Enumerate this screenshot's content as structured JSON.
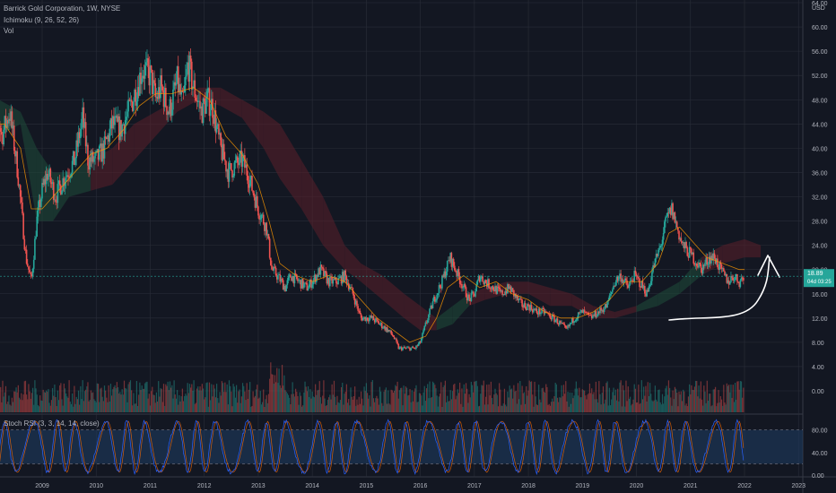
{
  "header": {
    "title": "Barrick Gold Corporation, 1W, NYSE",
    "ichimoku": "Ichimoku (9, 26, 52, 26)",
    "volume": "Vol",
    "currency": "USD"
  },
  "stoch": {
    "label": "Stoch RSI (3, 3, 14, 14, close)",
    "ticks": [
      "80.00",
      "40.00",
      "0.00"
    ]
  },
  "price_badge": {
    "price": "18.89",
    "countdown": "04d 03:25"
  },
  "colors": {
    "up": "#26a69a",
    "down": "#ef5350",
    "background": "#131722",
    "grid": "#2a2e39",
    "axis_text": "#b2b5be",
    "base_line": "#ff9800",
    "kumo_bull": "#1e4d3a",
    "kumo_bear": "#5a1f2a",
    "stoch_k": "#2962ff",
    "stoch_d": "#ff6d00",
    "stoch_band": "#1e3a5f",
    "badge": "#26a69a",
    "arrow": "#ffffff"
  },
  "chart_data": {
    "type": "candlestick",
    "title": "Barrick Gold Corporation, 1W, NYSE",
    "x_ticks": [
      "2009",
      "2010",
      "2011",
      "2012",
      "2013",
      "2014",
      "2015",
      "2016",
      "2017",
      "2018",
      "2019",
      "2020",
      "2021",
      "2022",
      "2023"
    ],
    "y_ticks": [
      "64.00",
      "60.00",
      "56.00",
      "52.00",
      "48.00",
      "44.00",
      "40.00",
      "36.00",
      "32.00",
      "28.00",
      "24.00",
      "20.00",
      "16.00",
      "12.00",
      "8.00",
      "4.00",
      "0.00"
    ],
    "ylim": [
      -2,
      64
    ],
    "xlim": [
      2008.0,
      2023.2
    ],
    "last_price": 18.89,
    "price_series": [
      [
        2008.0,
        34
      ],
      [
        2008.1,
        50
      ],
      [
        2008.25,
        42
      ],
      [
        2008.4,
        46
      ],
      [
        2008.55,
        36
      ],
      [
        2008.7,
        22
      ],
      [
        2008.8,
        18
      ],
      [
        2008.9,
        28
      ],
      [
        2009.0,
        33
      ],
      [
        2009.1,
        36
      ],
      [
        2009.25,
        32
      ],
      [
        2009.4,
        35
      ],
      [
        2009.6,
        38
      ],
      [
        2009.75,
        45
      ],
      [
        2009.85,
        38
      ],
      [
        2010.0,
        38
      ],
      [
        2010.15,
        40
      ],
      [
        2010.3,
        44
      ],
      [
        2010.45,
        43
      ],
      [
        2010.6,
        46
      ],
      [
        2010.75,
        50
      ],
      [
        2010.85,
        53
      ],
      [
        2011.0,
        52
      ],
      [
        2011.1,
        48
      ],
      [
        2011.2,
        50
      ],
      [
        2011.35,
        46
      ],
      [
        2011.5,
        51
      ],
      [
        2011.6,
        47
      ],
      [
        2011.7,
        54
      ],
      [
        2011.8,
        50
      ],
      [
        2011.95,
        46
      ],
      [
        2012.05,
        48
      ],
      [
        2012.15,
        47
      ],
      [
        2012.3,
        40
      ],
      [
        2012.45,
        36
      ],
      [
        2012.55,
        37
      ],
      [
        2012.7,
        38
      ],
      [
        2012.8,
        36
      ],
      [
        2012.9,
        33
      ],
      [
        2013.0,
        30
      ],
      [
        2013.15,
        27
      ],
      [
        2013.25,
        20
      ],
      [
        2013.35,
        19
      ],
      [
        2013.5,
        17
      ],
      [
        2013.6,
        19
      ],
      [
        2013.75,
        18
      ],
      [
        2013.9,
        17
      ],
      [
        2014.0,
        18
      ],
      [
        2014.15,
        20
      ],
      [
        2014.3,
        18
      ],
      [
        2014.45,
        18
      ],
      [
        2014.6,
        19
      ],
      [
        2014.75,
        16
      ],
      [
        2014.9,
        12
      ],
      [
        2015.0,
        12
      ],
      [
        2015.1,
        12
      ],
      [
        2015.25,
        11
      ],
      [
        2015.4,
        10
      ],
      [
        2015.5,
        9
      ],
      [
        2015.6,
        7
      ],
      [
        2015.75,
        7
      ],
      [
        2015.9,
        7
      ],
      [
        2016.0,
        8
      ],
      [
        2016.1,
        11
      ],
      [
        2016.25,
        15
      ],
      [
        2016.4,
        18
      ],
      [
        2016.55,
        22
      ],
      [
        2016.65,
        20
      ],
      [
        2016.8,
        17
      ],
      [
        2016.9,
        15
      ],
      [
        2017.0,
        16
      ],
      [
        2017.1,
        19
      ],
      [
        2017.2,
        18
      ],
      [
        2017.35,
        17
      ],
      [
        2017.5,
        16
      ],
      [
        2017.65,
        17
      ],
      [
        2017.8,
        15
      ],
      [
        2017.9,
        14
      ],
      [
        2018.0,
        14
      ],
      [
        2018.15,
        13
      ],
      [
        2018.3,
        13
      ],
      [
        2018.45,
        12
      ],
      [
        2018.6,
        11
      ],
      [
        2018.7,
        10
      ],
      [
        2018.85,
        12
      ],
      [
        2019.0,
        13
      ],
      [
        2019.15,
        12
      ],
      [
        2019.3,
        13
      ],
      [
        2019.45,
        14
      ],
      [
        2019.6,
        18
      ],
      [
        2019.7,
        19
      ],
      [
        2019.85,
        17
      ],
      [
        2019.95,
        19
      ],
      [
        2020.05,
        18
      ],
      [
        2020.2,
        16
      ],
      [
        2020.3,
        20
      ],
      [
        2020.45,
        24
      ],
      [
        2020.55,
        28
      ],
      [
        2020.65,
        30
      ],
      [
        2020.75,
        27
      ],
      [
        2020.85,
        24
      ],
      [
        2020.95,
        23
      ],
      [
        2021.05,
        22
      ],
      [
        2021.2,
        20
      ],
      [
        2021.35,
        22
      ],
      [
        2021.45,
        22
      ],
      [
        2021.55,
        20
      ],
      [
        2021.7,
        18
      ],
      [
        2021.8,
        19
      ],
      [
        2021.9,
        18
      ],
      [
        2022.0,
        18.89
      ]
    ],
    "base_line": [
      [
        2008.0,
        44
      ],
      [
        2008.3,
        44
      ],
      [
        2008.6,
        40
      ],
      [
        2008.8,
        30
      ],
      [
        2009.0,
        30
      ],
      [
        2009.3,
        33
      ],
      [
        2009.6,
        36
      ],
      [
        2009.9,
        39
      ],
      [
        2010.2,
        40
      ],
      [
        2010.5,
        43
      ],
      [
        2010.8,
        47
      ],
      [
        2011.1,
        49
      ],
      [
        2011.4,
        49
      ],
      [
        2011.8,
        50
      ],
      [
        2012.1,
        48
      ],
      [
        2012.4,
        42
      ],
      [
        2012.7,
        39
      ],
      [
        2013.0,
        34
      ],
      [
        2013.2,
        28
      ],
      [
        2013.4,
        21
      ],
      [
        2013.7,
        19
      ],
      [
        2014.0,
        18
      ],
      [
        2014.3,
        19
      ],
      [
        2014.6,
        18
      ],
      [
        2014.9,
        15
      ],
      [
        2015.2,
        12
      ],
      [
        2015.5,
        10
      ],
      [
        2015.8,
        8
      ],
      [
        2016.1,
        9
      ],
      [
        2016.3,
        12
      ],
      [
        2016.5,
        17
      ],
      [
        2016.8,
        19
      ],
      [
        2017.1,
        17
      ],
      [
        2017.4,
        18
      ],
      [
        2017.7,
        16
      ],
      [
        2018.0,
        15
      ],
      [
        2018.3,
        13
      ],
      [
        2018.6,
        12
      ],
      [
        2018.9,
        12
      ],
      [
        2019.2,
        13
      ],
      [
        2019.5,
        15
      ],
      [
        2019.8,
        18
      ],
      [
        2020.1,
        18
      ],
      [
        2020.4,
        21
      ],
      [
        2020.6,
        26
      ],
      [
        2020.8,
        27
      ],
      [
        2021.0,
        25
      ],
      [
        2021.3,
        22
      ],
      [
        2021.6,
        21
      ],
      [
        2021.9,
        20
      ],
      [
        2022.0,
        20
      ]
    ],
    "kumo": [
      [
        2008.2,
        48,
        42
      ],
      [
        2008.6,
        46,
        44
      ],
      [
        2008.9,
        40,
        28
      ],
      [
        2009.2,
        36,
        28
      ],
      [
        2009.5,
        36,
        32
      ],
      [
        2009.9,
        38,
        33
      ],
      [
        2010.3,
        40,
        34
      ],
      [
        2010.7,
        44,
        38
      ],
      [
        2011.1,
        46,
        42
      ],
      [
        2011.5,
        48,
        46
      ],
      [
        2011.9,
        50,
        48
      ],
      [
        2012.3,
        50,
        47
      ],
      [
        2012.7,
        48,
        45
      ],
      [
        2013.1,
        46,
        40
      ],
      [
        2013.4,
        44,
        35
      ],
      [
        2013.8,
        38,
        30
      ],
      [
        2014.2,
        32,
        24
      ],
      [
        2014.6,
        24,
        20
      ],
      [
        2014.9,
        21,
        18
      ],
      [
        2015.3,
        19,
        15
      ],
      [
        2015.7,
        16,
        12
      ],
      [
        2016.0,
        14,
        10
      ],
      [
        2016.3,
        12,
        10
      ],
      [
        2016.6,
        14,
        11
      ],
      [
        2016.9,
        16,
        14
      ],
      [
        2017.2,
        17,
        15
      ],
      [
        2017.6,
        18,
        16
      ],
      [
        2018.0,
        18,
        16
      ],
      [
        2018.4,
        17,
        14
      ],
      [
        2018.8,
        16,
        14
      ],
      [
        2019.2,
        14,
        12
      ],
      [
        2019.6,
        13,
        12
      ],
      [
        2020.0,
        14,
        13
      ],
      [
        2020.4,
        16,
        14
      ],
      [
        2020.8,
        18,
        16
      ],
      [
        2021.2,
        22,
        19
      ],
      [
        2021.6,
        24,
        21
      ],
      [
        2022.0,
        25,
        22
      ],
      [
        2022.3,
        24,
        22
      ]
    ],
    "stoch_levels": [
      80,
      20
    ]
  }
}
